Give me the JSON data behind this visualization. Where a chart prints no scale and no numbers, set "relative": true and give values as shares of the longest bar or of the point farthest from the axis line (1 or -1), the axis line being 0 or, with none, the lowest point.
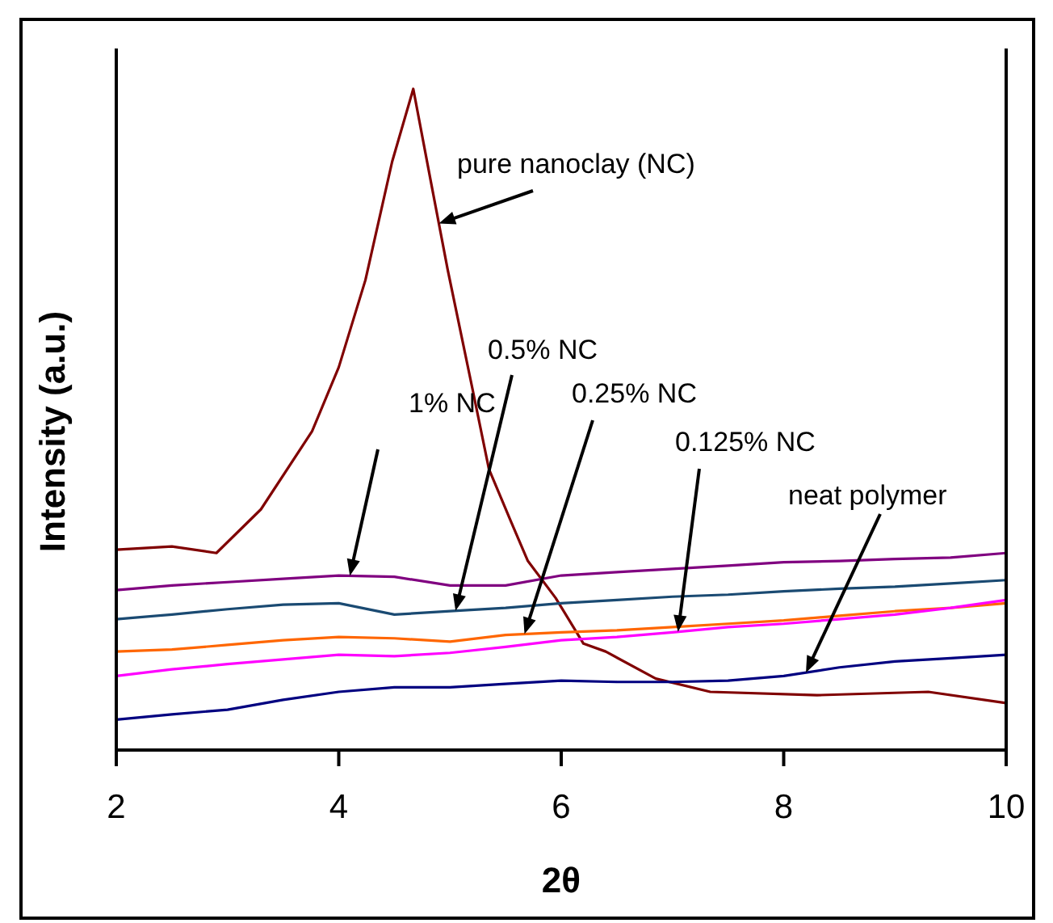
{
  "chart_data": {
    "type": "line",
    "relative": true,
    "xlabel": "2θ",
    "ylabel": "Intensity (a.u.)",
    "xlim": [
      2,
      10
    ],
    "xticks": [
      2,
      4,
      6,
      8,
      10
    ],
    "grid": false,
    "marker": "none",
    "line_style": "solid",
    "x": [
      2,
      2.5,
      3,
      3.5,
      4,
      4.5,
      5,
      5.5,
      6,
      6.5,
      7,
      7.5,
      8,
      8.5,
      9,
      9.5,
      10
    ],
    "series": [
      {
        "name": "pure nanoclay (NC)",
        "color": "#800000",
        "x": [
          2,
          2.5,
          2.9,
          3.3,
          3.76,
          4.0,
          4.24,
          4.48,
          4.67,
          4.83,
          4.98,
          5.2,
          5.35,
          5.55,
          5.7,
          5.95,
          6.2,
          6.4,
          6.85,
          7.34,
          8.3,
          9.3,
          10
        ],
        "values": [
          0.303,
          0.308,
          0.298,
          0.364,
          0.482,
          0.579,
          0.711,
          0.89,
          1.0,
          0.858,
          0.726,
          0.548,
          0.425,
          0.345,
          0.286,
          0.23,
          0.161,
          0.149,
          0.108,
          0.088,
          0.083,
          0.088,
          0.071
        ]
      },
      {
        "name": "1% NC",
        "color": "#800080",
        "values": [
          0.242,
          0.249,
          0.254,
          0.259,
          0.264,
          0.262,
          0.249,
          0.249,
          0.264,
          0.269,
          0.274,
          0.279,
          0.284,
          0.286,
          0.289,
          0.291,
          0.298
        ]
      },
      {
        "name": "0.5% NC",
        "color": "#1a4a72",
        "values": [
          0.198,
          0.205,
          0.213,
          0.22,
          0.222,
          0.205,
          0.21,
          0.215,
          0.222,
          0.227,
          0.232,
          0.235,
          0.24,
          0.244,
          0.247,
          0.252,
          0.257
        ]
      },
      {
        "name": "0.25% NC",
        "color": "#ff6600",
        "values": [
          0.149,
          0.152,
          0.159,
          0.166,
          0.171,
          0.169,
          0.164,
          0.174,
          0.178,
          0.181,
          0.186,
          0.191,
          0.196,
          0.203,
          0.21,
          0.215,
          0.222
        ]
      },
      {
        "name": "0.125% NC",
        "color": "#ff00ff",
        "values": [
          0.112,
          0.122,
          0.13,
          0.137,
          0.144,
          0.142,
          0.147,
          0.156,
          0.166,
          0.171,
          0.178,
          0.186,
          0.191,
          0.198,
          0.205,
          0.215,
          0.227
        ]
      },
      {
        "name": "neat polymer",
        "color": "#000080",
        "values": [
          0.046,
          0.054,
          0.061,
          0.076,
          0.088,
          0.095,
          0.095,
          0.1,
          0.105,
          0.103,
          0.103,
          0.105,
          0.112,
          0.125,
          0.134,
          0.139,
          0.144
        ]
      }
    ]
  }
}
